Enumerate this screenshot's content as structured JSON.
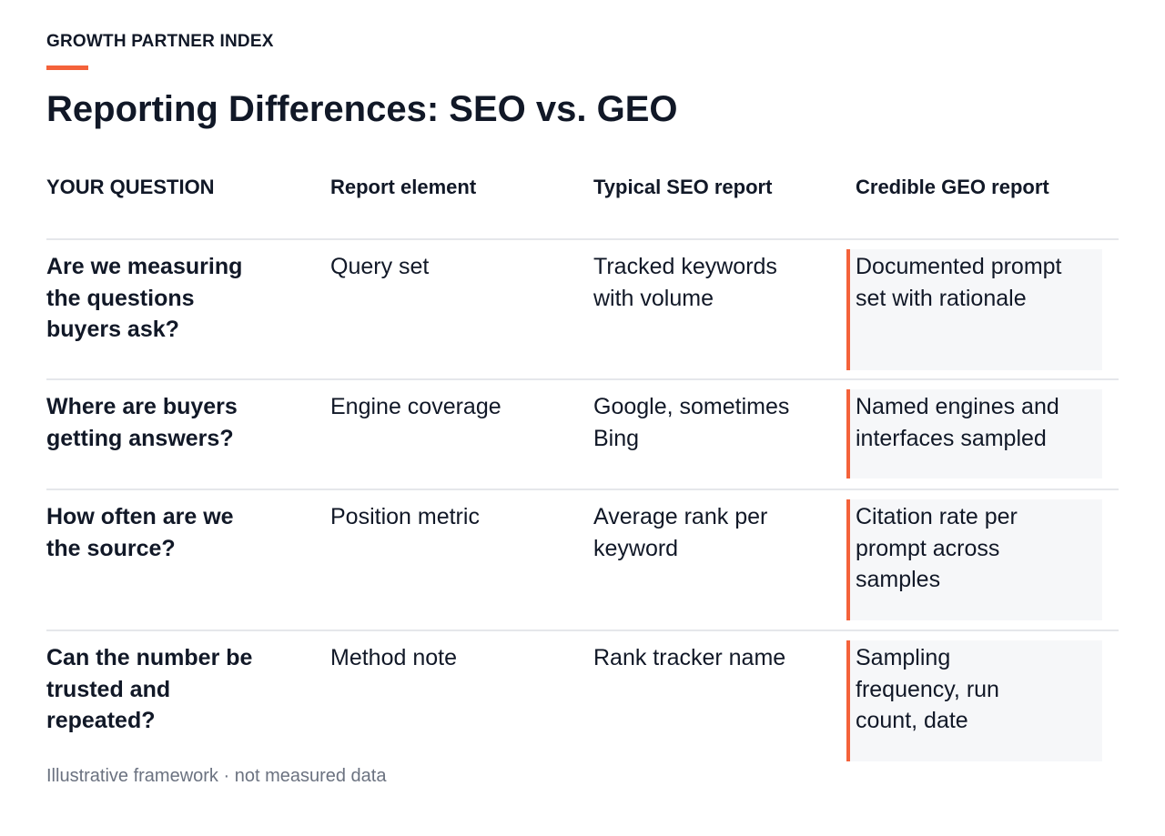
{
  "eyebrow": "GROWTH PARTNER INDEX",
  "title": "Reporting Differences: SEO vs. GEO",
  "accent_color": "#f4623a",
  "table": {
    "headers": [
      "YOUR QUESTION",
      "Report element",
      "Typical SEO report",
      "Credible GEO report"
    ],
    "rows": [
      {
        "question": "Are we measuring the questions buyers ask?",
        "element": "Query set",
        "seo": "Tracked keywords with volume",
        "geo": "Documented prompt set with rationale"
      },
      {
        "question": "Where are buyers getting answers?",
        "element": "Engine coverage",
        "seo": "Google, sometimes Bing",
        "geo": "Named engines and interfaces sampled"
      },
      {
        "question": "How often are we the source?",
        "element": "Position metric",
        "seo": "Average rank per keyword",
        "geo": "Citation rate per prompt across samples"
      },
      {
        "question": "Can the number be trusted and repeated?",
        "element": "Method note",
        "seo": "Rank tracker name",
        "geo": "Sampling frequency, run count, date"
      }
    ]
  },
  "footnote": "Illustrative framework · not measured data"
}
